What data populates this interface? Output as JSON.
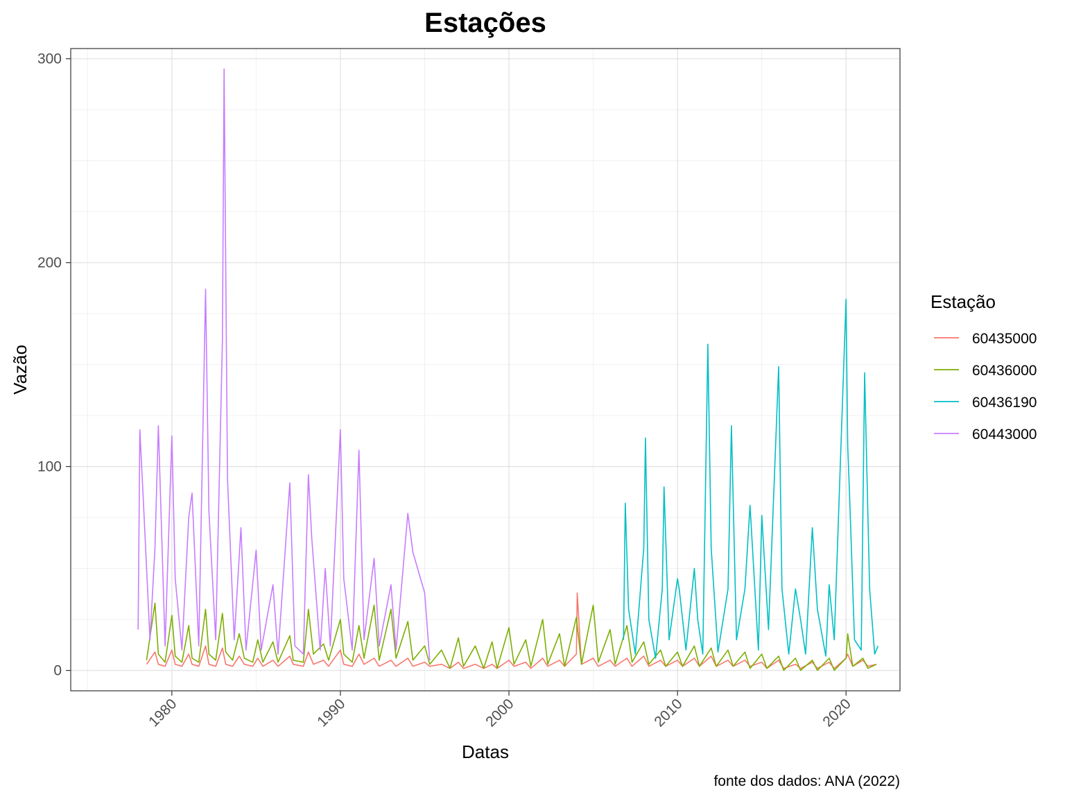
{
  "chart_data": {
    "type": "line",
    "title": "Estações",
    "xlabel": "Datas",
    "ylabel": "Vazão",
    "caption": "fonte dos dados: ANA (2022)",
    "legend_title": "Estação",
    "legend_position": "right",
    "grid": true,
    "xlim": [
      1974.0,
      2023.2
    ],
    "ylim": [
      -10,
      305
    ],
    "x_ticks": [
      1980,
      1990,
      2000,
      2010,
      2020
    ],
    "x_tick_labels": [
      "1980",
      "1990",
      "2000",
      "2010",
      "2020"
    ],
    "y_ticks": [
      0,
      100,
      200,
      300
    ],
    "y_tick_labels": [
      "0",
      "100",
      "200",
      "300"
    ],
    "series": [
      {
        "name": "60435000",
        "color": "#F8766D",
        "x": [
          1978.5,
          1979.0,
          1979.2,
          1979.6,
          1980.0,
          1980.2,
          1980.6,
          1981.0,
          1981.2,
          1981.6,
          1982.0,
          1982.2,
          1982.6,
          1983.0,
          1983.2,
          1983.6,
          1984.0,
          1984.3,
          1984.8,
          1985.1,
          1985.4,
          1986.0,
          1986.3,
          1987.0,
          1987.2,
          1987.8,
          1988.1,
          1988.4,
          1989.0,
          1989.3,
          1990.0,
          1990.2,
          1990.7,
          1991.1,
          1991.4,
          1992.0,
          1992.3,
          1993.0,
          1993.3,
          1994.0,
          1994.3,
          1995.0,
          1995.3,
          1996.0,
          1996.5,
          1997.0,
          1997.3,
          1998.0,
          1998.5,
          1999.0,
          1999.3,
          2000.0,
          2000.3,
          2001.0,
          2001.3,
          2002.0,
          2002.3,
          2003.0,
          2003.3,
          2004.0,
          2004.05,
          2004.3,
          2005.0,
          2005.3,
          2006.0,
          2006.3,
          2007.0,
          2007.3,
          2008.0,
          2008.3,
          2009.0,
          2009.3,
          2010.0,
          2010.3,
          2011.0,
          2011.3,
          2012.0,
          2012.3,
          2013.0,
          2013.3,
          2014.0,
          2014.3,
          2015.0,
          2015.3,
          2016.0,
          2016.3,
          2017.0,
          2017.3,
          2018.0,
          2018.3,
          2019.0,
          2019.3,
          2020.0,
          2020.1,
          2020.4,
          2021.0,
          2021.3,
          2021.8
        ],
        "values": [
          3,
          9,
          3,
          2,
          10,
          3,
          2,
          8,
          3,
          2,
          12,
          3,
          2,
          11,
          3,
          2,
          7,
          3,
          2,
          6,
          2,
          5,
          2,
          7,
          3,
          2,
          9,
          3,
          5,
          2,
          10,
          3,
          2,
          8,
          3,
          6,
          2,
          5,
          2,
          6,
          2,
          4,
          2,
          3,
          1,
          4,
          1,
          3,
          1,
          3,
          1,
          5,
          2,
          4,
          1,
          6,
          2,
          5,
          2,
          8,
          38,
          3,
          6,
          2,
          5,
          2,
          6,
          2,
          7,
          2,
          5,
          2,
          5,
          2,
          6,
          2,
          7,
          2,
          5,
          2,
          5,
          2,
          4,
          1,
          5,
          1,
          3,
          1,
          4,
          1,
          4,
          1,
          6,
          8,
          2,
          5,
          2,
          3
        ]
      },
      {
        "name": "60436000",
        "color": "#7CAE00",
        "x": [
          1978.5,
          1979.0,
          1979.2,
          1979.6,
          1980.0,
          1980.2,
          1980.6,
          1981.0,
          1981.2,
          1981.6,
          1982.0,
          1982.2,
          1982.6,
          1983.0,
          1983.2,
          1983.6,
          1984.0,
          1984.3,
          1984.8,
          1985.1,
          1985.4,
          1986.0,
          1986.3,
          1987.0,
          1987.2,
          1987.8,
          1988.1,
          1988.4,
          1989.0,
          1989.3,
          1990.0,
          1990.2,
          1990.7,
          1991.1,
          1991.4,
          1992.0,
          1992.3,
          1993.0,
          1993.3,
          1994.0,
          1994.3,
          1995.0,
          1995.3,
          1996.0,
          1996.5,
          1997.0,
          1997.3,
          1998.0,
          1998.5,
          1999.0,
          1999.3,
          2000.0,
          2000.3,
          2001.0,
          2001.3,
          2002.0,
          2002.3,
          2003.0,
          2003.3,
          2004.0,
          2004.3,
          2005.0,
          2005.3,
          2006.0,
          2006.3,
          2007.0,
          2007.3,
          2008.0,
          2008.3,
          2009.0,
          2009.3,
          2010.0,
          2010.3,
          2011.0,
          2011.3,
          2012.0,
          2012.3,
          2013.0,
          2013.3,
          2014.0,
          2014.3,
          2015.0,
          2015.3,
          2016.0,
          2016.3,
          2017.0,
          2017.3,
          2018.0,
          2018.3,
          2019.0,
          2019.3,
          2020.0,
          2020.1,
          2020.4,
          2021.0,
          2021.3,
          2021.8
        ],
        "values": [
          5,
          33,
          8,
          4,
          27,
          7,
          4,
          22,
          6,
          4,
          30,
          8,
          5,
          28,
          9,
          5,
          18,
          6,
          4,
          15,
          4,
          14,
          4,
          17,
          5,
          4,
          30,
          8,
          13,
          5,
          25,
          8,
          4,
          22,
          6,
          32,
          5,
          30,
          6,
          24,
          5,
          12,
          3,
          10,
          1,
          16,
          2,
          12,
          1,
          14,
          1,
          21,
          3,
          15,
          2,
          25,
          3,
          18,
          2,
          26,
          3,
          32,
          4,
          20,
          3,
          22,
          4,
          14,
          3,
          10,
          2,
          9,
          2,
          12,
          2,
          11,
          2,
          10,
          2,
          9,
          1,
          8,
          1,
          7,
          0,
          6,
          0,
          5,
          0,
          6,
          0,
          6,
          18,
          2,
          6,
          1,
          3
        ]
      },
      {
        "name": "60436190",
        "color": "#00BFC4",
        "x": [
          2006.8,
          2006.9,
          2007.1,
          2007.5,
          2008.0,
          2008.1,
          2008.3,
          2008.7,
          2009.1,
          2009.2,
          2009.5,
          2010.0,
          2010.1,
          2010.5,
          2011.0,
          2011.2,
          2011.5,
          2011.8,
          2012.0,
          2012.4,
          2013.0,
          2013.2,
          2013.5,
          2014.0,
          2014.3,
          2014.8,
          2015.0,
          2015.4,
          2016.0,
          2016.2,
          2016.6,
          2017.0,
          2017.3,
          2017.6,
          2018.0,
          2018.3,
          2018.8,
          2019.0,
          2019.3,
          2020.0,
          2020.1,
          2020.2,
          2020.5,
          2020.9,
          2021.1,
          2021.4,
          2021.7,
          2021.9
        ],
        "values": [
          15,
          82,
          30,
          8,
          60,
          114,
          25,
          6,
          40,
          90,
          15,
          45,
          40,
          10,
          50,
          25,
          8,
          160,
          60,
          9,
          40,
          120,
          15,
          40,
          81,
          10,
          76,
          20,
          149,
          40,
          8,
          40,
          25,
          8,
          70,
          30,
          7,
          42,
          15,
          182,
          110,
          88,
          15,
          10,
          146,
          40,
          8,
          12
        ]
      },
      {
        "name": "60443000",
        "color": "#C77CFF",
        "x": [
          1978.0,
          1978.1,
          1978.3,
          1978.7,
          1979.0,
          1979.2,
          1979.6,
          1980.0,
          1980.2,
          1980.6,
          1981.0,
          1981.2,
          1981.6,
          1982.0,
          1982.2,
          1982.6,
          1983.0,
          1983.1,
          1983.3,
          1983.7,
          1984.1,
          1984.4,
          1985.0,
          1985.3,
          1986.0,
          1986.3,
          1987.0,
          1987.3,
          1987.8,
          1988.1,
          1988.3,
          1988.8,
          1989.1,
          1989.4,
          1990.0,
          1990.2,
          1990.7,
          1991.1,
          1991.4,
          1992.0,
          1992.3,
          1993.0,
          1993.3,
          1994.0,
          1994.3,
          1995.0,
          1995.3
        ],
        "values": [
          20,
          118,
          85,
          15,
          60,
          120,
          12,
          115,
          45,
          10,
          75,
          87,
          12,
          187,
          78,
          15,
          162,
          295,
          94,
          15,
          70,
          10,
          59,
          10,
          42,
          8,
          92,
          12,
          8,
          96,
          65,
          10,
          50,
          12,
          118,
          45,
          10,
          108,
          15,
          55,
          12,
          42,
          10,
          77,
          58,
          38,
          5
        ]
      }
    ]
  }
}
